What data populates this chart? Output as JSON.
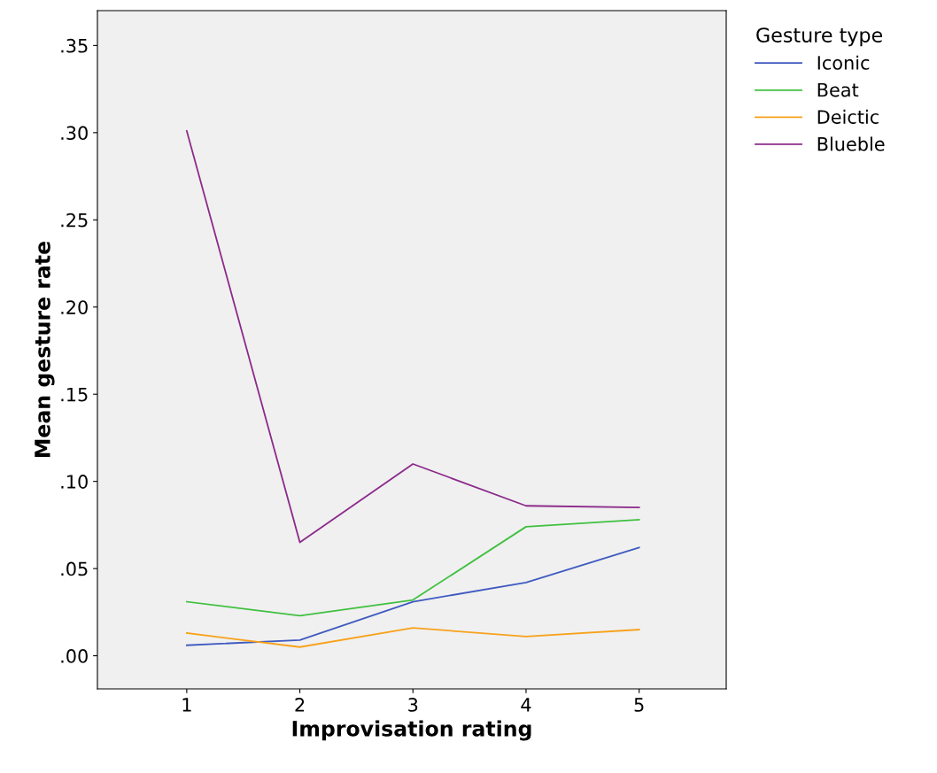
{
  "chart_data": {
    "type": "line",
    "xlabel": "Improvisation rating",
    "ylabel": "Mean gesture rate",
    "legend_title": "Gesture type",
    "legend": "top right",
    "grid": false,
    "marker": "none",
    "line_style": "solid",
    "categories": [
      "1",
      "2",
      "3",
      "4",
      "5"
    ],
    "ylim": [
      -0.019,
      0.37
    ],
    "yticks": [
      {
        "value": 0,
        "label": ".00"
      },
      {
        "value": 0.05,
        "label": ".05"
      },
      {
        "value": 0.1,
        "label": ".10"
      },
      {
        "value": 0.15,
        "label": ".15"
      },
      {
        "value": 0.2,
        "label": ".20"
      },
      {
        "value": 0.25,
        "label": ".25"
      },
      {
        "value": 0.3,
        "label": ".30"
      },
      {
        "value": 0.35,
        "label": ".35"
      }
    ],
    "series": [
      {
        "name": "Iconic",
        "color": "#3f5ac0",
        "values": [
          0.006,
          0.009,
          0.031,
          0.042,
          0.062
        ]
      },
      {
        "name": "Beat",
        "color": "#40c040",
        "values": [
          0.031,
          0.023,
          0.032,
          0.074,
          0.078
        ]
      },
      {
        "name": "Deictic",
        "color": "#f7a21b",
        "values": [
          0.013,
          0.005,
          0.016,
          0.011,
          0.015
        ]
      },
      {
        "name": "Blueble",
        "color": "#8b2a8a",
        "values": [
          0.301,
          0.065,
          0.11,
          0.086,
          0.085
        ]
      }
    ]
  }
}
